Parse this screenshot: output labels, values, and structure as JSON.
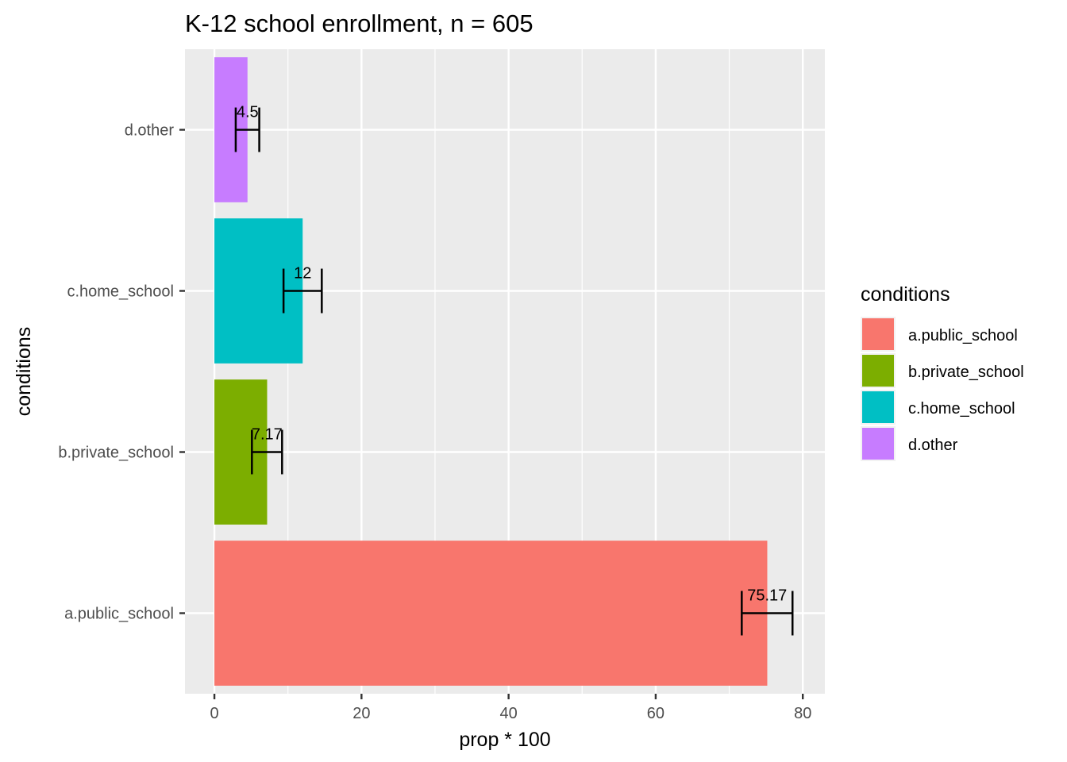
{
  "chart_data": {
    "type": "bar",
    "orientation": "horizontal",
    "title": "K-12 school enrollment, n = 605",
    "xlabel": "prop * 100",
    "ylabel": "conditions",
    "xlim": [
      -4,
      83
    ],
    "xticks": [
      "0",
      "20",
      "40",
      "60",
      "80"
    ],
    "grid": true,
    "categories": [
      "a.public_school",
      "b.private_school",
      "c.home_school",
      "d.other"
    ],
    "values": [
      75.17,
      7.17,
      12,
      4.5
    ],
    "value_labels": [
      "75.17",
      "7.17",
      "12",
      "4.5"
    ],
    "error_low": [
      71.7,
      5.1,
      9.4,
      2.9
    ],
    "error_high": [
      78.6,
      9.2,
      14.6,
      6.1
    ],
    "colors": [
      "#F8766D",
      "#7CAE00",
      "#00BFC4",
      "#C77CFF"
    ],
    "legend": {
      "title": "conditions",
      "position": "right",
      "items": [
        "a.public_school",
        "b.private_school",
        "c.home_school",
        "d.other"
      ]
    }
  }
}
